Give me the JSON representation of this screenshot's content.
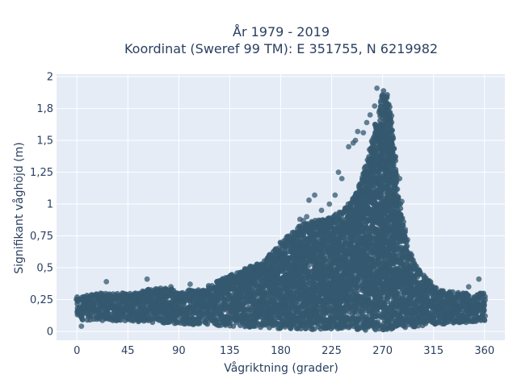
{
  "chart_data": {
    "type": "scatter",
    "title_lines": [
      "År 1979 - 2019",
      "Koordinat (Sweref 99 TM): E 351755, N 6219982"
    ],
    "xlabel": "Vågriktning (grader)",
    "ylabel": "Signifikant våghöjd (m)",
    "xlim": [
      -18,
      378
    ],
    "ylim": [
      -0.07,
      2.02
    ],
    "x_ticks": [
      0,
      45,
      90,
      135,
      180,
      225,
      270,
      315,
      360
    ],
    "x_tick_labels": [
      "0",
      "45",
      "90",
      "135",
      "180",
      "225",
      "270",
      "315",
      "360"
    ],
    "y_ticks": [
      0,
      0.25,
      0.5,
      0.75,
      1,
      1.25,
      1.5,
      1.75,
      2
    ],
    "y_tick_labels": [
      "0",
      "0,25",
      "0,5",
      "0,75",
      "1",
      "1,25",
      "1,5",
      "1,8",
      "2"
    ],
    "grid": true,
    "marker_color": "#34596f",
    "plot_background": "#e5ecf6",
    "upper_envelope": [
      [
        0,
        0.27
      ],
      [
        20,
        0.3
      ],
      [
        45,
        0.3
      ],
      [
        60,
        0.33
      ],
      [
        75,
        0.35
      ],
      [
        90,
        0.32
      ],
      [
        110,
        0.33
      ],
      [
        130,
        0.42
      ],
      [
        150,
        0.5
      ],
      [
        165,
        0.55
      ],
      [
        180,
        0.7
      ],
      [
        195,
        0.82
      ],
      [
        210,
        0.87
      ],
      [
        225,
        0.9
      ],
      [
        240,
        1.0
      ],
      [
        250,
        1.15
      ],
      [
        258,
        1.4
      ],
      [
        263,
        1.6
      ],
      [
        268,
        1.82
      ],
      [
        272,
        1.92
      ],
      [
        276,
        1.8
      ],
      [
        280,
        1.5
      ],
      [
        284,
        1.1
      ],
      [
        290,
        0.75
      ],
      [
        297,
        0.55
      ],
      [
        305,
        0.45
      ],
      [
        320,
        0.33
      ],
      [
        340,
        0.3
      ],
      [
        360,
        0.3
      ]
    ],
    "lower_envelope": [
      [
        0,
        0.09
      ],
      [
        45,
        0.08
      ],
      [
        90,
        0.06
      ],
      [
        135,
        0.04
      ],
      [
        180,
        0.02
      ],
      [
        225,
        0.01
      ],
      [
        270,
        0.01
      ],
      [
        315,
        0.05
      ],
      [
        360,
        0.08
      ]
    ],
    "outlier_points": [
      {
        "x": 265,
        "y": 1.91
      },
      {
        "x": 263,
        "y": 1.77
      },
      {
        "x": 259,
        "y": 1.7
      },
      {
        "x": 256,
        "y": 1.64
      },
      {
        "x": 253,
        "y": 1.56
      },
      {
        "x": 246,
        "y": 1.5
      },
      {
        "x": 244,
        "y": 1.48
      },
      {
        "x": 240,
        "y": 1.45
      },
      {
        "x": 248,
        "y": 1.57
      },
      {
        "x": 231,
        "y": 1.25
      },
      {
        "x": 234,
        "y": 1.2
      },
      {
        "x": 228,
        "y": 1.07
      },
      {
        "x": 223,
        "y": 1.0
      },
      {
        "x": 210,
        "y": 1.07
      },
      {
        "x": 205,
        "y": 1.03
      },
      {
        "x": 203,
        "y": 0.9
      },
      {
        "x": 200,
        "y": 0.87
      },
      {
        "x": 197,
        "y": 0.88
      },
      {
        "x": 216,
        "y": 0.95
      },
      {
        "x": 26,
        "y": 0.39
      },
      {
        "x": 62,
        "y": 0.41
      },
      {
        "x": 83,
        "y": 0.35
      },
      {
        "x": 100,
        "y": 0.37
      },
      {
        "x": 355,
        "y": 0.41
      },
      {
        "x": 346,
        "y": 0.35
      },
      {
        "x": 4,
        "y": 0.04
      },
      {
        "x": 312,
        "y": 0.31
      },
      {
        "x": 290,
        "y": 0.8
      },
      {
        "x": 287,
        "y": 1.02
      },
      {
        "x": 292,
        "y": 0.72
      },
      {
        "x": 285,
        "y": 1.2
      }
    ]
  }
}
